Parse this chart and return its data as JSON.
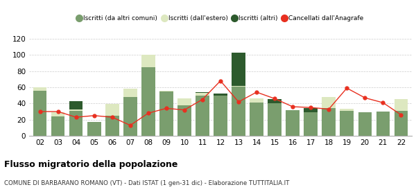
{
  "years": [
    "02",
    "03",
    "04",
    "05",
    "06",
    "07",
    "08",
    "09",
    "10",
    "11",
    "12",
    "13",
    "14",
    "15",
    "16",
    "17",
    "18",
    "19",
    "20",
    "21",
    "22"
  ],
  "iscritti_altri_comuni": [
    56,
    24,
    31,
    17,
    25,
    48,
    85,
    55,
    38,
    50,
    50,
    61,
    41,
    40,
    32,
    29,
    34,
    31,
    29,
    30,
    31
  ],
  "iscritti_estero": [
    4,
    5,
    2,
    0,
    14,
    10,
    15,
    1,
    8,
    3,
    0,
    1,
    5,
    0,
    0,
    0,
    14,
    2,
    0,
    0,
    14
  ],
  "iscritti_altri": [
    0,
    0,
    10,
    0,
    0,
    0,
    0,
    0,
    0,
    1,
    2,
    41,
    0,
    5,
    0,
    5,
    0,
    0,
    0,
    0,
    0
  ],
  "cancellati": [
    30,
    30,
    23,
    25,
    23,
    13,
    28,
    34,
    32,
    45,
    68,
    42,
    54,
    46,
    36,
    35,
    33,
    59,
    47,
    41,
    26
  ],
  "color_altri_comuni": "#7a9e6e",
  "color_estero": "#dde8c0",
  "color_altri": "#2d5a2d",
  "color_cancellati": "#e83020",
  "title": "Flusso migratorio della popolazione",
  "subtitle": "COMUNE DI BARBARANO ROMANO (VT) - Dati ISTAT (1 gen-31 dic) - Elaborazione TUTTITALIA.IT",
  "legend_labels": [
    "Iscritti (da altri comuni)",
    "Iscritti (dall'estero)",
    "Iscritti (altri)",
    "Cancellati dall'Anagrafe"
  ],
  "ylim": [
    0,
    120
  ],
  "yticks": [
    0,
    20,
    40,
    60,
    80,
    100,
    120
  ],
  "background_color": "#ffffff",
  "grid_color": "#cccccc"
}
